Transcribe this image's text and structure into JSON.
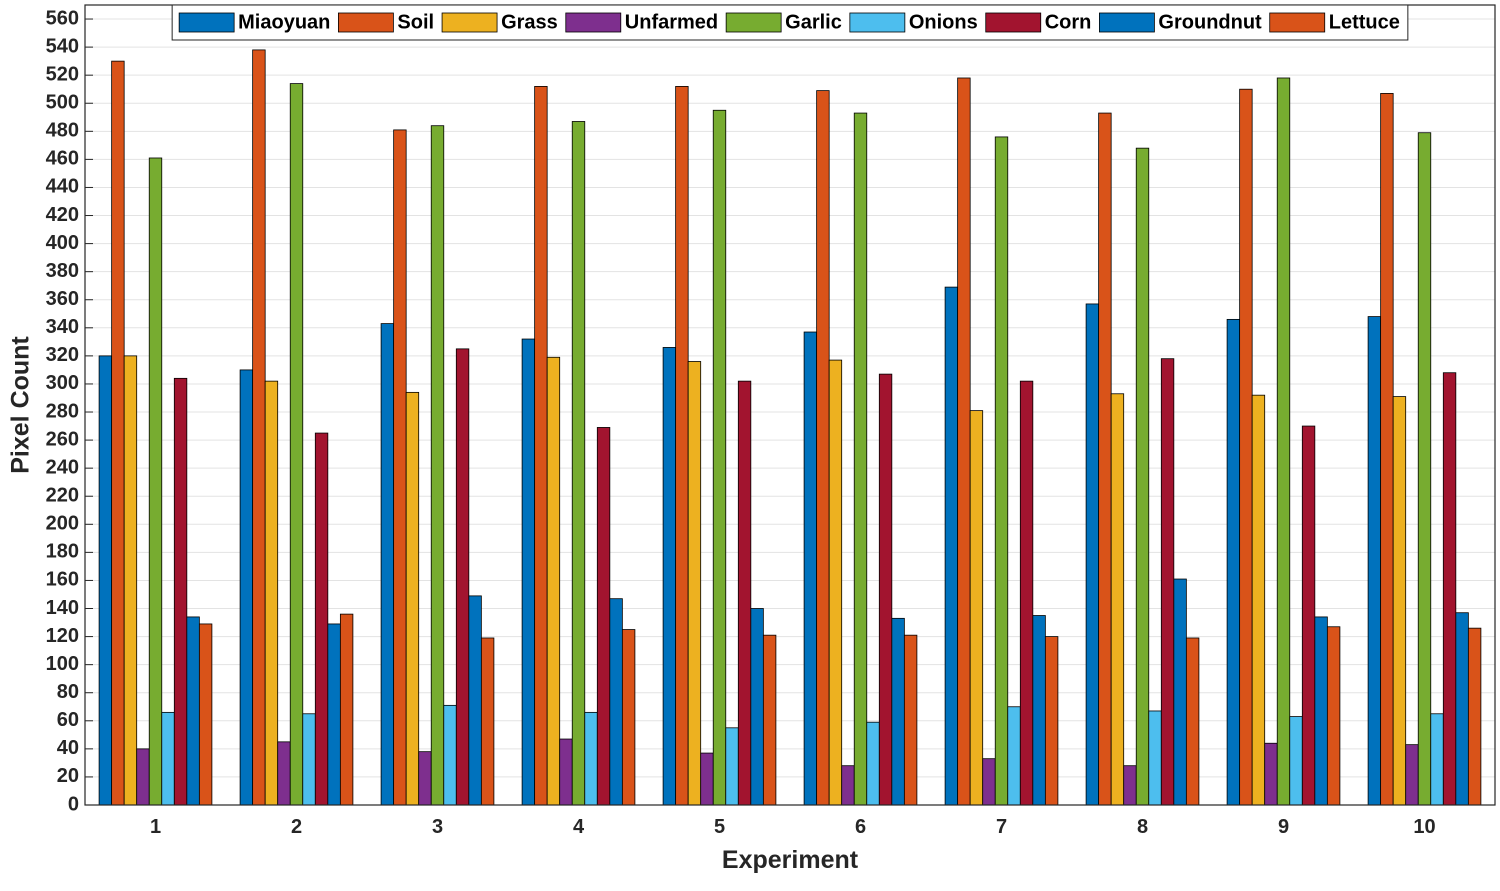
{
  "chart_data": {
    "type": "bar",
    "x_label": "Experiment",
    "y_label": "Pixel Count",
    "x": [
      1,
      2,
      3,
      4,
      5,
      6,
      7,
      8,
      9,
      10
    ],
    "xlim": [
      0.5,
      10.5
    ],
    "xticks": [
      1,
      2,
      3,
      4,
      5,
      6,
      7,
      8,
      9,
      10
    ],
    "ylim": [
      0,
      570
    ],
    "yticks": [
      0,
      20,
      40,
      60,
      80,
      100,
      120,
      140,
      160,
      180,
      200,
      220,
      240,
      260,
      280,
      300,
      320,
      340,
      360,
      380,
      400,
      420,
      440,
      460,
      480,
      500,
      520,
      540,
      560
    ],
    "grid": true,
    "legend": "top",
    "series": [
      {
        "name": "Miaoyuan",
        "color": "#0072BD",
        "values": [
          320,
          310,
          343,
          332,
          326,
          337,
          369,
          357,
          346,
          348
        ]
      },
      {
        "name": "Soil",
        "color": "#D95319",
        "values": [
          530,
          538,
          481,
          512,
          512,
          509,
          518,
          493,
          510,
          507
        ]
      },
      {
        "name": "Grass",
        "color": "#EDB120",
        "values": [
          320,
          302,
          294,
          319,
          316,
          317,
          281,
          293,
          292,
          291
        ]
      },
      {
        "name": "Unfarmed",
        "color": "#7E2F8E",
        "values": [
          40,
          45,
          38,
          47,
          37,
          28,
          33,
          28,
          44,
          43
        ]
      },
      {
        "name": "Garlic",
        "color": "#77AC30",
        "values": [
          461,
          514,
          484,
          487,
          495,
          493,
          476,
          468,
          518,
          479
        ]
      },
      {
        "name": "Onions",
        "color": "#4DBEEE",
        "values": [
          66,
          65,
          71,
          66,
          55,
          59,
          70,
          67,
          63,
          65
        ]
      },
      {
        "name": "Corn",
        "color": "#A2142F",
        "values": [
          304,
          265,
          325,
          269,
          302,
          307,
          302,
          318,
          270,
          308
        ]
      },
      {
        "name": "Groundnut",
        "color": "#0072BD",
        "values": [
          134,
          129,
          149,
          147,
          140,
          133,
          135,
          161,
          134,
          137
        ]
      },
      {
        "name": "Lettuce",
        "color": "#D95319",
        "values": [
          129,
          136,
          119,
          125,
          121,
          121,
          120,
          119,
          127,
          126
        ]
      }
    ]
  }
}
